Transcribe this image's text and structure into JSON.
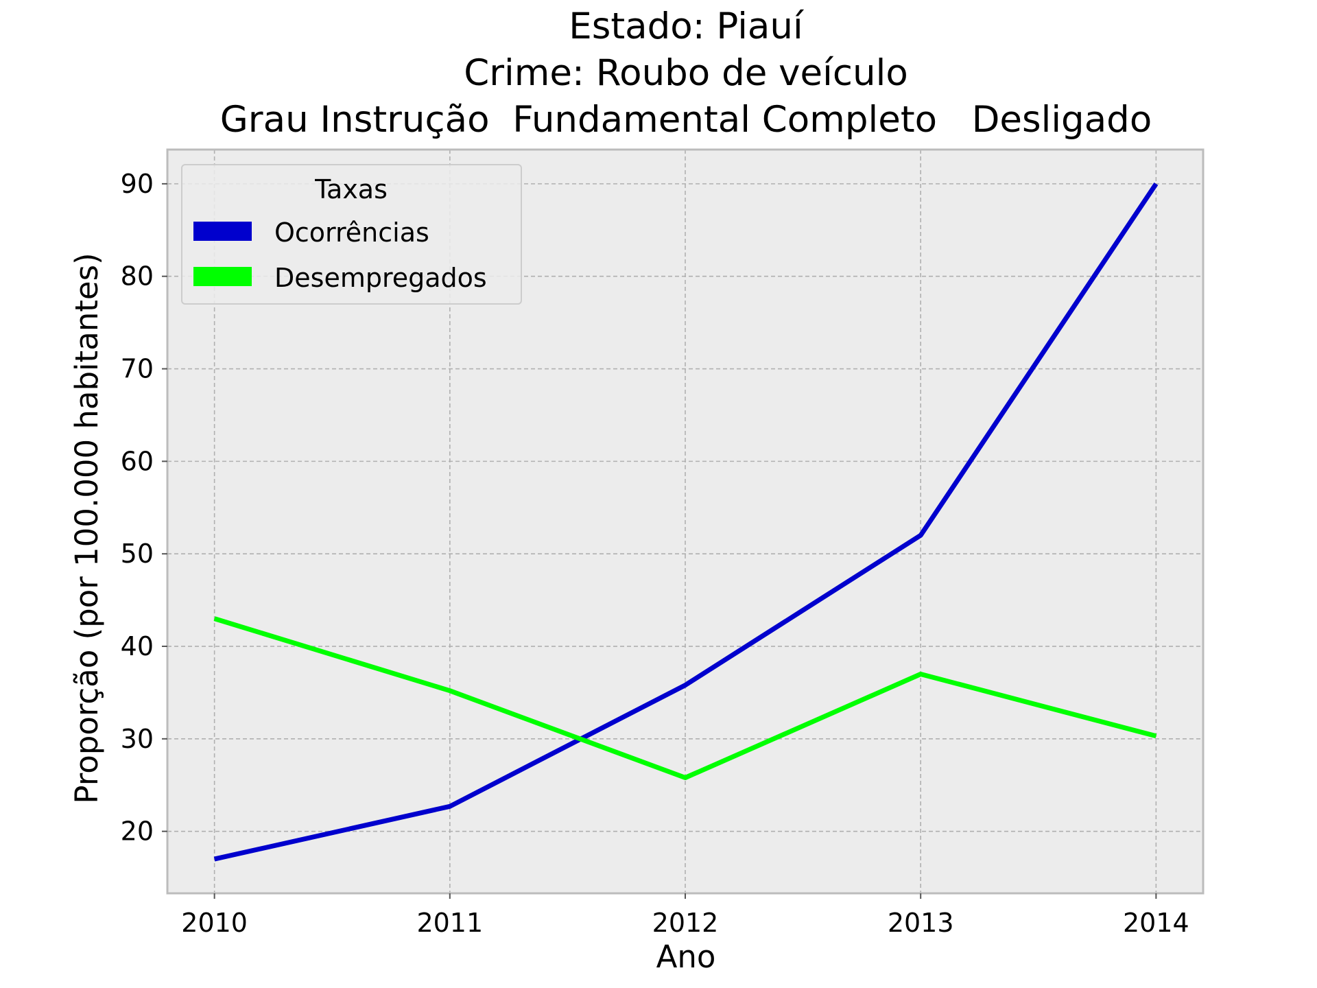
{
  "chart_data": {
    "type": "line",
    "title_lines": [
      "Estado: Piauí",
      "Crime: Roubo de veículo",
      "Grau Instrução  Fundamental Completo   Desligado"
    ],
    "xlabel": "Ano",
    "ylabel": "Proporção (por 100.000 habitantes)",
    "x": [
      2010,
      2011,
      2012,
      2013,
      2014
    ],
    "x_tick_labels": [
      "2010",
      "2011",
      "2012",
      "2013",
      "2014"
    ],
    "xlim": [
      2009.8,
      2014.2
    ],
    "yticks": [
      20,
      30,
      40,
      50,
      60,
      70,
      80,
      90
    ],
    "y_tick_labels": [
      "20",
      "30",
      "40",
      "50",
      "60",
      "70",
      "80",
      "90"
    ],
    "ylim": [
      13.3,
      93.7
    ],
    "grid": true,
    "legend": {
      "title": "Taxas",
      "placement": "upper-left"
    },
    "series": [
      {
        "name": "Ocorrências",
        "color": "#0000cd",
        "values": [
          17.0,
          22.7,
          35.8,
          52.0,
          90.0
        ]
      },
      {
        "name": "Desempregados",
        "color": "#00ff00",
        "values": [
          43.0,
          35.2,
          25.8,
          37.0,
          30.3
        ]
      }
    ],
    "colors": {
      "plot_background": "#ececec",
      "grid": "#b0b0b0",
      "frame": "#bcbcbc"
    }
  }
}
